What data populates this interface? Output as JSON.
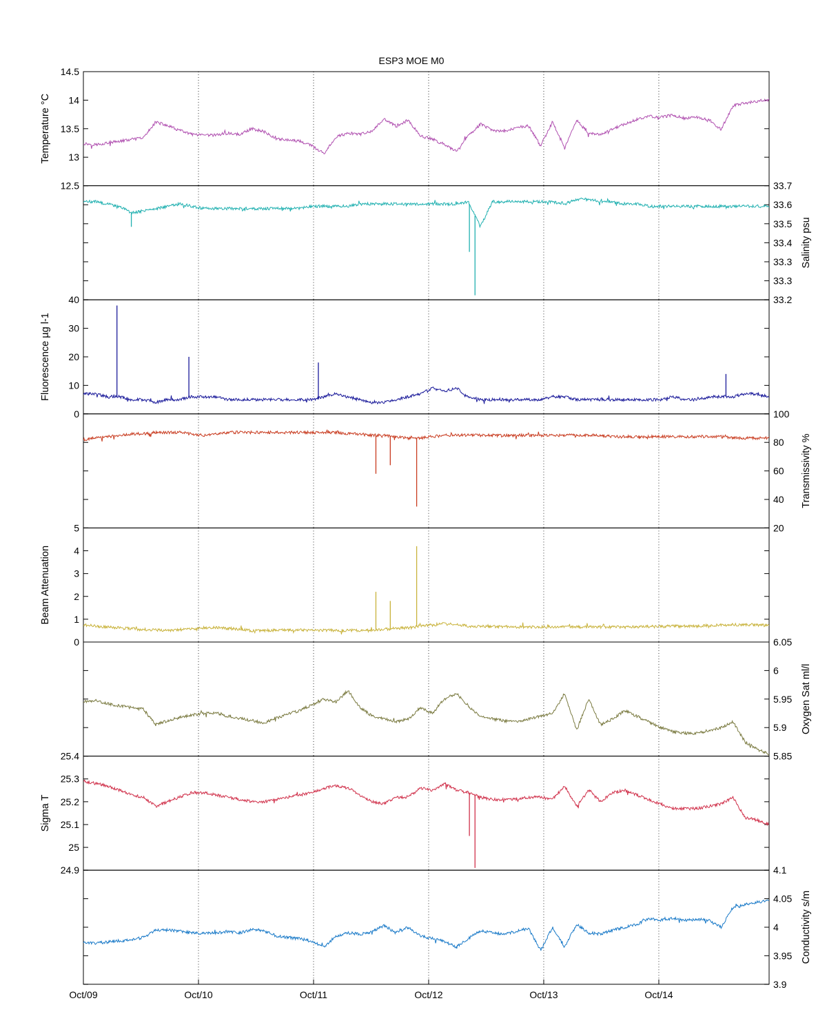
{
  "chart_data": {
    "type": "line",
    "title": "ESP3 MOE   M0",
    "x": {
      "type": "date",
      "tick_labels": [
        "Oct/09",
        "Oct/10",
        "Oct/11",
        "Oct/12",
        "Oct/13",
        "Oct/14"
      ],
      "range": [
        "Oct/09 00:00",
        "Oct/14 23:00"
      ],
      "grid": "vertical dotted at each day"
    },
    "panels": [
      {
        "name": "Temperature °C",
        "ylabel": "Temperature °C",
        "axis_side": "left",
        "ylim": [
          12.5,
          14.5
        ],
        "tick_labels": [
          "12.5",
          "13",
          "13.5",
          "14",
          "14.5"
        ],
        "color": "#b050b0",
        "values": [
          13.24,
          13.22,
          13.25,
          13.28,
          13.31,
          13.34,
          13.62,
          13.55,
          13.47,
          13.4,
          13.38,
          13.39,
          13.42,
          13.4,
          13.5,
          13.45,
          13.33,
          13.3,
          13.28,
          13.2,
          13.06,
          13.36,
          13.42,
          13.4,
          13.45,
          13.68,
          13.54,
          13.65,
          13.37,
          13.32,
          13.22,
          13.1,
          13.38,
          13.58,
          13.47,
          13.45,
          13.52,
          13.55,
          13.2,
          13.62,
          13.15,
          13.65,
          13.42,
          13.39,
          13.5,
          13.58,
          13.66,
          13.72,
          13.7,
          13.74,
          13.68,
          13.7,
          13.66,
          13.48,
          13.9,
          13.95,
          13.98,
          14.01
        ]
      },
      {
        "name": "Salinity psu",
        "ylabel": "Salinity psu",
        "axis_side": "right",
        "ylim": [
          33.2,
          33.7
        ],
        "tick_labels": [
          "33.2",
          "33.3",
          "33.3",
          "33.4",
          "33.5",
          "33.6",
          "33.7"
        ],
        "color": "#20b0b0",
        "values": [
          33.63,
          33.63,
          33.62,
          33.61,
          33.58,
          33.59,
          33.6,
          33.61,
          33.62,
          33.61,
          33.6,
          33.6,
          33.6,
          33.6,
          33.6,
          33.6,
          33.6,
          33.6,
          33.6,
          33.61,
          33.61,
          33.61,
          33.61,
          33.62,
          33.62,
          33.62,
          33.62,
          33.62,
          33.62,
          33.62,
          33.62,
          33.62,
          33.63,
          33.52,
          33.63,
          33.63,
          33.63,
          33.63,
          33.63,
          33.63,
          33.62,
          33.64,
          33.64,
          33.63,
          33.63,
          33.62,
          33.62,
          33.61,
          33.61,
          33.61,
          33.61,
          33.61,
          33.61,
          33.61,
          33.61,
          33.61,
          33.61,
          33.61
        ],
        "spikes": [
          {
            "x": "Oct/09 10:00",
            "y": 33.52
          },
          {
            "x": "Oct/12 08:30",
            "y": 33.41
          },
          {
            "x": "Oct/12 09:40",
            "y": 33.22
          }
        ]
      },
      {
        "name": "Fluorescence µg l-1",
        "ylabel": "Fluorescence µg l-1",
        "axis_side": "left",
        "ylim": [
          0,
          40
        ],
        "tick_labels": [
          "0",
          "10",
          "20",
          "30",
          "40"
        ],
        "color": "#1a1a9a",
        "values": [
          7,
          7,
          6,
          6,
          5,
          5,
          4,
          5,
          5,
          6,
          6,
          6,
          5,
          5,
          5,
          5,
          5,
          5,
          5,
          5,
          6,
          7,
          6,
          5,
          4,
          4,
          5,
          6,
          7,
          9,
          8,
          9,
          6,
          5,
          5,
          5,
          5,
          5,
          5,
          6,
          6,
          5,
          5,
          5,
          5,
          5,
          5,
          5,
          5,
          6,
          5,
          5,
          6,
          6,
          6,
          7,
          7,
          6
        ],
        "spikes": [
          {
            "x": "Oct/09 07:00",
            "y": 38
          },
          {
            "x": "Oct/09 22:00",
            "y": 20
          },
          {
            "x": "Oct/11 01:00",
            "y": 18
          },
          {
            "x": "Oct/14 14:00",
            "y": 14
          }
        ]
      },
      {
        "name": "Transmissivity %",
        "ylabel": "Transmissivity %",
        "axis_side": "right",
        "ylim": [
          20,
          100
        ],
        "tick_labels": [
          "20",
          "40",
          "60",
          "80",
          "100"
        ],
        "color": "#c83a1e",
        "values": [
          82,
          83,
          84,
          85,
          86,
          86,
          87,
          87,
          87,
          86,
          85,
          86,
          87,
          87,
          87,
          87,
          87,
          87,
          87,
          87,
          87,
          87,
          86,
          86,
          85,
          85,
          84,
          83,
          83,
          84,
          85,
          85,
          85,
          85,
          85,
          85,
          85,
          85,
          85,
          85,
          85,
          85,
          85,
          85,
          84,
          84,
          84,
          84,
          84,
          84,
          84,
          84,
          84,
          84,
          83,
          83,
          83,
          83
        ],
        "spikes": [
          {
            "x": "Oct/11 13:00",
            "y": 58
          },
          {
            "x": "Oct/11 16:00",
            "y": 64
          },
          {
            "x": "Oct/11 21:30",
            "y": 35
          }
        ]
      },
      {
        "name": "Beam Attenuation",
        "ylabel": "Beam Attenuation",
        "axis_side": "left",
        "ylim": [
          0,
          5
        ],
        "tick_labels": [
          "0",
          "1",
          "2",
          "3",
          "4",
          "5"
        ],
        "color": "#c8b23a",
        "values": [
          0.75,
          0.7,
          0.65,
          0.62,
          0.58,
          0.55,
          0.52,
          0.52,
          0.54,
          0.58,
          0.62,
          0.65,
          0.6,
          0.55,
          0.5,
          0.5,
          0.52,
          0.53,
          0.53,
          0.52,
          0.51,
          0.52,
          0.51,
          0.52,
          0.53,
          0.55,
          0.6,
          0.62,
          0.7,
          0.75,
          0.8,
          0.75,
          0.7,
          0.68,
          0.68,
          0.68,
          0.66,
          0.66,
          0.66,
          0.66,
          0.66,
          0.66,
          0.66,
          0.66,
          0.65,
          0.65,
          0.66,
          0.68,
          0.68,
          0.7,
          0.7,
          0.7,
          0.72,
          0.74,
          0.76,
          0.76,
          0.75,
          0.72
        ],
        "spikes": [
          {
            "x": "Oct/11 13:00",
            "y": 2.2
          },
          {
            "x": "Oct/11 16:00",
            "y": 1.8
          },
          {
            "x": "Oct/11 21:30",
            "y": 4.2
          }
        ]
      },
      {
        "name": "Oxygen Sat ml/l",
        "ylabel": "Oxygen Sat ml/l",
        "axis_side": "right",
        "ylim": [
          5.85,
          6.05
        ],
        "tick_labels": [
          "5.85",
          "5.9",
          "5.95",
          "6",
          "6.05"
        ],
        "color": "#7a7a40",
        "values": [
          5.945,
          5.948,
          5.942,
          5.938,
          5.935,
          5.932,
          5.905,
          5.912,
          5.918,
          5.922,
          5.925,
          5.926,
          5.92,
          5.916,
          5.912,
          5.908,
          5.916,
          5.924,
          5.93,
          5.94,
          5.95,
          5.945,
          5.965,
          5.935,
          5.92,
          5.915,
          5.91,
          5.915,
          5.935,
          5.925,
          5.95,
          5.96,
          5.938,
          5.92,
          5.915,
          5.912,
          5.91,
          5.915,
          5.92,
          5.925,
          5.96,
          5.895,
          5.95,
          5.905,
          5.915,
          5.93,
          5.92,
          5.91,
          5.9,
          5.893,
          5.89,
          5.89,
          5.895,
          5.9,
          5.91,
          5.875,
          5.862,
          5.853
        ]
      },
      {
        "name": "Sigma T",
        "ylabel": "Sigma T",
        "axis_side": "left",
        "ylim": [
          24.9,
          25.4
        ],
        "tick_labels": [
          "24.9",
          "25",
          "25.1",
          "25.2",
          "25.3",
          "25.4"
        ],
        "color": "#d0304a",
        "values": [
          25.29,
          25.28,
          25.27,
          25.25,
          25.23,
          25.22,
          25.18,
          25.2,
          25.22,
          25.24,
          25.24,
          25.23,
          25.22,
          25.21,
          25.2,
          25.2,
          25.21,
          25.22,
          25.23,
          25.24,
          25.26,
          25.27,
          25.26,
          25.23,
          25.2,
          25.19,
          25.22,
          25.22,
          25.26,
          25.25,
          25.28,
          25.25,
          25.24,
          25.22,
          25.21,
          25.21,
          25.21,
          25.22,
          25.22,
          25.21,
          25.27,
          25.18,
          25.25,
          25.2,
          25.24,
          25.25,
          25.23,
          25.21,
          25.19,
          25.17,
          25.17,
          25.17,
          25.18,
          25.19,
          25.22,
          25.13,
          25.12,
          25.1
        ],
        "spikes": [
          {
            "x": "Oct/12 08:30",
            "y": 25.05
          },
          {
            "x": "Oct/12 09:40",
            "y": 24.91
          }
        ]
      },
      {
        "name": "Conductivity s/m",
        "ylabel": "Conductivity s/m",
        "axis_side": "right",
        "ylim": [
          3.9,
          4.1
        ],
        "tick_labels": [
          "3.9",
          "3.95",
          "4",
          "4.05",
          "4.1"
        ],
        "color": "#1a7ac8",
        "values": [
          3.973,
          3.972,
          3.974,
          3.976,
          3.978,
          3.982,
          3.995,
          3.995,
          3.993,
          3.99,
          3.989,
          3.99,
          3.992,
          3.99,
          3.996,
          3.994,
          3.985,
          3.982,
          3.98,
          3.975,
          3.965,
          3.985,
          3.99,
          3.988,
          3.992,
          4.003,
          3.99,
          4.0,
          3.985,
          3.98,
          3.975,
          3.965,
          3.98,
          3.994,
          3.99,
          3.988,
          3.993,
          3.998,
          3.96,
          4.0,
          3.965,
          4.005,
          3.99,
          3.988,
          3.995,
          4.0,
          4.005,
          4.015,
          4.012,
          4.016,
          4.012,
          4.014,
          4.012,
          4.0,
          4.035,
          4.04,
          4.044,
          4.047
        ]
      }
    ]
  }
}
